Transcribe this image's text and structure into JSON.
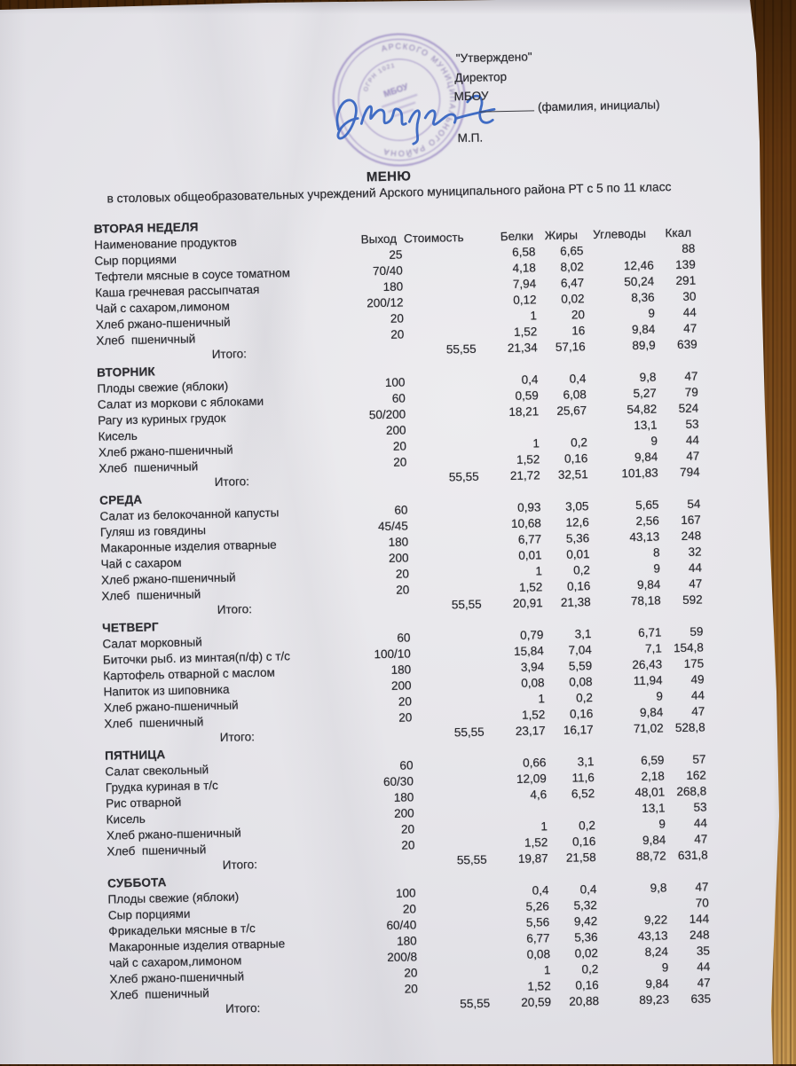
{
  "approval": {
    "approved": "\"Утверждено\"",
    "director": "Директор",
    "org": "МБОУ",
    "name_hint": "(фамилия, инициалы)",
    "mp": "М.П."
  },
  "stamp": {
    "ring_text": "АРСКОГО МУНИЦИПАЛЬНОГО РАЙОНА",
    "inner_ring_text": "ОГРН 1021",
    "center_text": "МБОУ"
  },
  "title": "МЕНЮ",
  "subtitle": "в столовых общеобразовательных учреждений Арского муниципального района РТ с 5 по 11 класс",
  "colors": {
    "stamp_purple": "#6f58ad",
    "signature_blue": "#2e5fc0",
    "paper": "#e4e3e8",
    "wood": "#7a4a1a",
    "text": "#2c2c31"
  },
  "table": {
    "week_label": "ВТОРАЯ НЕДЕЛЯ",
    "itogo_label": "Итого:",
    "headers": {
      "name": "Наименование продуктов",
      "output": "Выход",
      "cost": "Стоимость",
      "protein": "Белки",
      "fat": "Жиры",
      "carbs": "Углеводы",
      "kcal": "Ккал"
    },
    "blocks": [
      {
        "day": "",
        "rows": [
          [
            "Сыр порциями",
            "25",
            "6,58",
            "6,65",
            "",
            "88"
          ],
          [
            "Тефтели мясные в соусе томатном",
            "70/40",
            "4,18",
            "8,02",
            "12,46",
            "139"
          ],
          [
            "Каша гречневая рассыпчатая",
            "180",
            "7,94",
            "6,47",
            "50,24",
            "291"
          ],
          [
            "Чай с сахаром,лимоном",
            "200/12",
            "0,12",
            "0,02",
            "8,36",
            "30"
          ],
          [
            "Хлеб ржано-пшеничный",
            "20",
            "1",
            "20",
            "9",
            "44"
          ],
          [
            "Хлеб  пшеничный",
            "20",
            "1,52",
            "16",
            "9,84",
            "47"
          ]
        ],
        "total": [
          "55,55",
          "21,34",
          "57,16",
          "89,9",
          "639"
        ]
      },
      {
        "day": "ВТОРНИК",
        "rows": [
          [
            "Плоды свежие (яблоки)",
            "100",
            "0,4",
            "0,4",
            "9,8",
            "47"
          ],
          [
            "Салат из моркови с яблоками",
            "60",
            "0,59",
            "6,08",
            "5,27",
            "79"
          ],
          [
            "Рагу из куриных грудок",
            "50/200",
            "18,21",
            "25,67",
            "54,82",
            "524"
          ],
          [
            "Кисель",
            "200",
            "",
            "",
            "13,1",
            "53"
          ],
          [
            "Хлеб ржано-пшеничный",
            "20",
            "1",
            "0,2",
            "9",
            "44"
          ],
          [
            "Хлеб  пшеничный",
            "20",
            "1,52",
            "0,16",
            "9,84",
            "47"
          ]
        ],
        "total": [
          "55,55",
          "21,72",
          "32,51",
          "101,83",
          "794"
        ]
      },
      {
        "day": "СРЕДА",
        "rows": [
          [
            "Салат из белокочанной капусты",
            "60",
            "0,93",
            "3,05",
            "5,65",
            "54"
          ],
          [
            "Гуляш из говядины",
            "45/45",
            "10,68",
            "12,6",
            "2,56",
            "167"
          ],
          [
            "Макаронные изделия отварные",
            "180",
            "6,77",
            "5,36",
            "43,13",
            "248"
          ],
          [
            "Чай с сахаром",
            "200",
            "0,01",
            "0,01",
            "8",
            "32"
          ],
          [
            "Хлеб ржано-пшеничный",
            "20",
            "1",
            "0,2",
            "9",
            "44"
          ],
          [
            "Хлеб  пшеничный",
            "20",
            "1,52",
            "0,16",
            "9,84",
            "47"
          ]
        ],
        "total": [
          "55,55",
          "20,91",
          "21,38",
          "78,18",
          "592"
        ]
      },
      {
        "day": "ЧЕТВЕРГ",
        "rows": [
          [
            "Салат морковный",
            "60",
            "0,79",
            "3,1",
            "6,71",
            "59"
          ],
          [
            "Биточки рыб. из минтая(п/ф) с т/с",
            "100/10",
            "15,84",
            "7,04",
            "7,1",
            "154,8"
          ],
          [
            "Картофель отварной с маслом",
            "180",
            "3,94",
            "5,59",
            "26,43",
            "175"
          ],
          [
            "Напиток из шиповника",
            "200",
            "0,08",
            "0,08",
            "11,94",
            "49"
          ],
          [
            "Хлеб ржано-пшеничный",
            "20",
            "1",
            "0,2",
            "9",
            "44"
          ],
          [
            "Хлеб  пшеничный",
            "20",
            "1,52",
            "0,16",
            "9,84",
            "47"
          ]
        ],
        "total": [
          "55,55",
          "23,17",
          "16,17",
          "71,02",
          "528,8"
        ]
      },
      {
        "day": "ПЯТНИЦА",
        "rows": [
          [
            "Салат свекольный",
            "60",
            "0,66",
            "3,1",
            "6,59",
            "57"
          ],
          [
            "Грудка куриная в т/с",
            "60/30",
            "12,09",
            "11,6",
            "2,18",
            "162"
          ],
          [
            "Рис отварной",
            "180",
            "4,6",
            "6,52",
            "48,01",
            "268,8"
          ],
          [
            "Кисель",
            "200",
            "",
            "",
            "13,1",
            "53"
          ],
          [
            "Хлеб ржано-пшеничный",
            "20",
            "1",
            "0,2",
            "9",
            "44"
          ],
          [
            "Хлеб  пшеничный",
            "20",
            "1,52",
            "0,16",
            "9,84",
            "47"
          ]
        ],
        "total": [
          "55,55",
          "19,87",
          "21,58",
          "88,72",
          "631,8"
        ]
      },
      {
        "day": "СУББОТА",
        "rows": [
          [
            "Плоды свежие (яблоки)",
            "100",
            "0,4",
            "0,4",
            "9,8",
            "47"
          ],
          [
            "Сыр порциями",
            "20",
            "5,26",
            "5,32",
            "",
            "70"
          ],
          [
            "Фрикадельки мясные в т/с",
            "60/40",
            "5,56",
            "9,42",
            "9,22",
            "144"
          ],
          [
            "Макаронные изделия отварные",
            "180",
            "6,77",
            "5,36",
            "43,13",
            "248"
          ],
          [
            "чай с сахаром,лимоном",
            "200/8",
            "0,08",
            "0,02",
            "8,24",
            "35"
          ],
          [
            "Хлеб ржано-пшеничный",
            "20",
            "1",
            "0,2",
            "9",
            "44"
          ],
          [
            "Хлеб  пшеничный",
            "20",
            "1,52",
            "0,16",
            "9,84",
            "47"
          ]
        ],
        "total": [
          "55,55",
          "20,59",
          "20,88",
          "89,23",
          "635"
        ]
      }
    ]
  }
}
